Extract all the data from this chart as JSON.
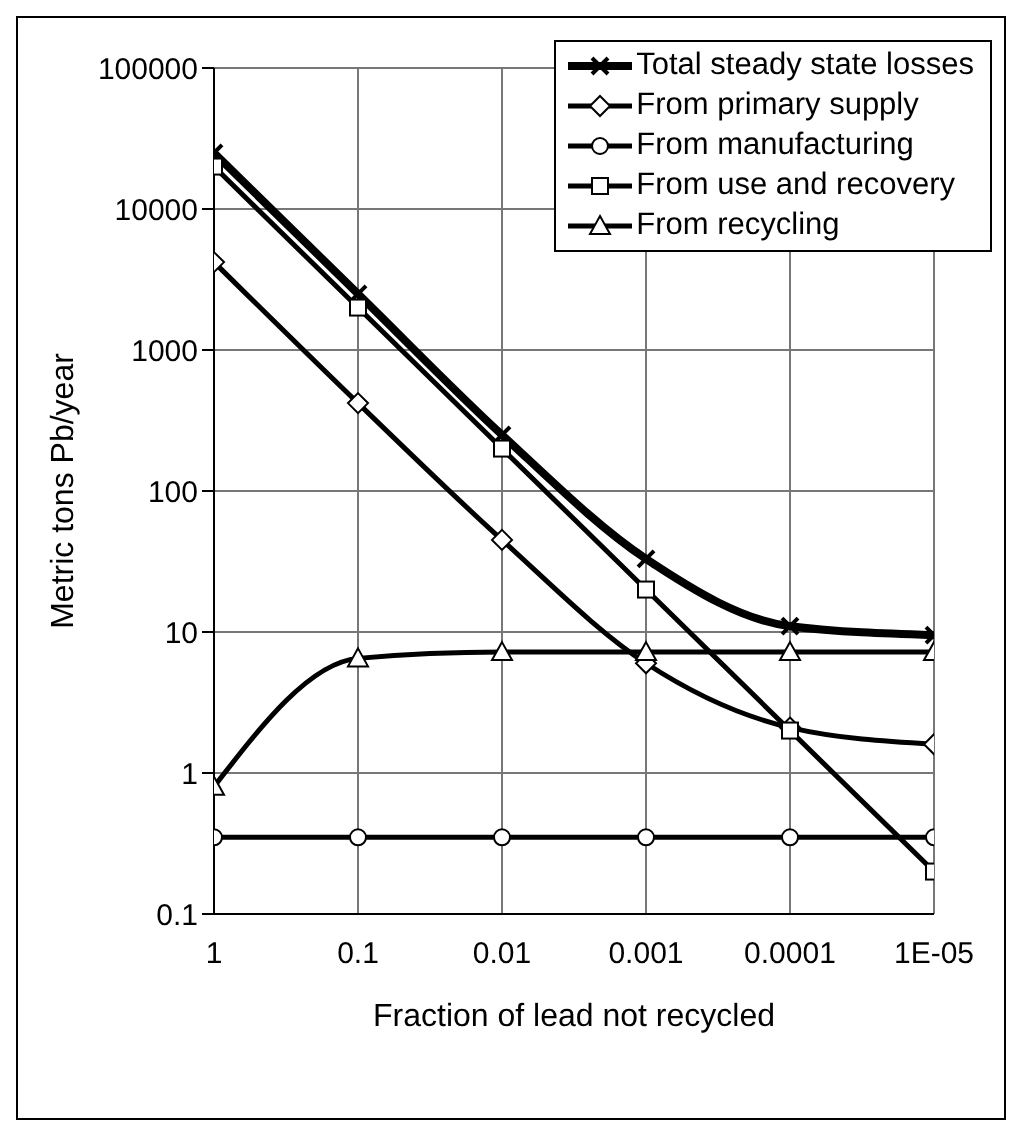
{
  "chart_data": {
    "type": "line",
    "xlabel": "Fraction of lead not recycled",
    "ylabel": "Metric tons Pb/year",
    "x": [
      1,
      0.1,
      0.01,
      0.001,
      0.0001,
      1e-05
    ],
    "series": [
      {
        "name": "Total steady state losses",
        "color": "#000000",
        "marker": "cross",
        "values": [
          25000,
          2500,
          250,
          33,
          11,
          9.5
        ]
      },
      {
        "name": "From primary supply",
        "color": "#000000",
        "marker": "diamond",
        "values": [
          4200,
          420,
          45,
          6,
          2.1,
          1.6
        ]
      },
      {
        "name": "From manufacturing",
        "color": "#000000",
        "marker": "circle",
        "values": [
          0.35,
          0.35,
          0.35,
          0.35,
          0.35,
          0.35
        ]
      },
      {
        "name": "From use and recovery",
        "color": "#000000",
        "marker": "square",
        "values": [
          20000,
          2000,
          200,
          20,
          2,
          0.2
        ]
      },
      {
        "name": "From recycling",
        "color": "#000000",
        "marker": "triangle",
        "values": [
          0.8,
          6.5,
          7.2,
          7.2,
          7.2,
          7.2
        ]
      }
    ],
    "log": "xy",
    "xlim": [
      1,
      1e-05
    ],
    "ylim": [
      0.1,
      100000
    ],
    "xticks": [
      1,
      0.1,
      0.01,
      0.001,
      0.0001,
      {
        "value": 1e-05,
        "label": "1E-05"
      }
    ],
    "yticks": [
      0.1,
      1,
      10,
      100,
      1000,
      10000,
      100000
    ],
    "grid": true,
    "legend": "top right",
    "line_style": "solid"
  }
}
